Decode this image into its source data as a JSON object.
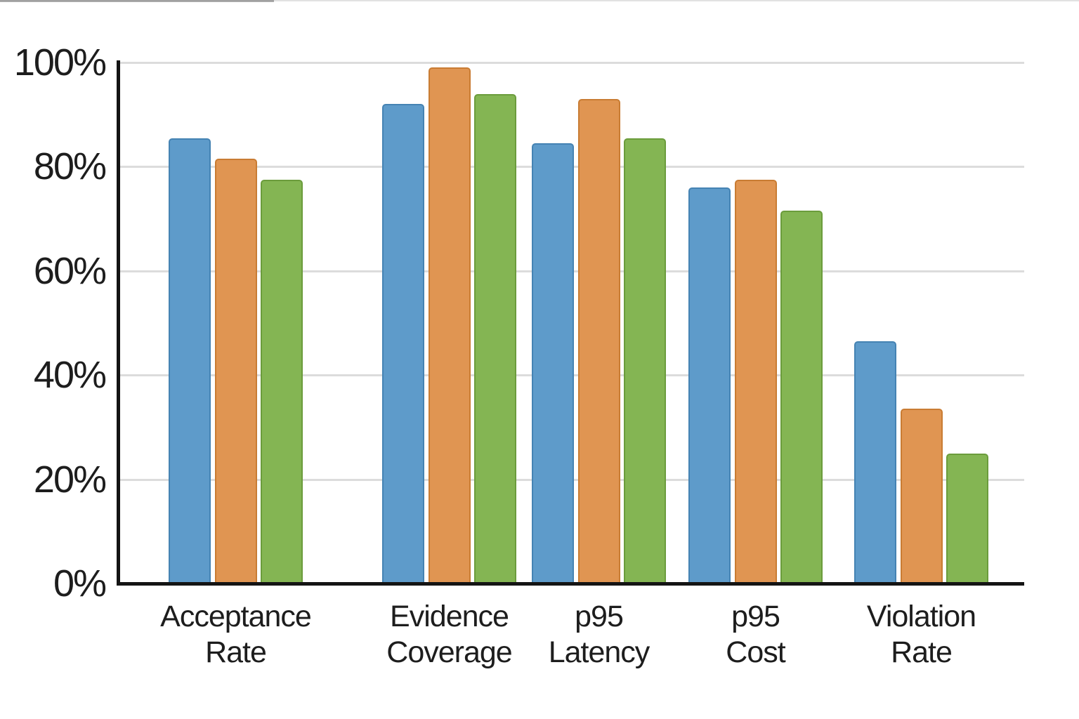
{
  "chart_data": {
    "type": "bar",
    "title": "",
    "xlabel": "",
    "ylabel": "",
    "legend": "none",
    "grid": "horizontal",
    "ylim": [
      0,
      100
    ],
    "categories": [
      "Acceptance Rate",
      "Evidence Coverage",
      "p95 Latency",
      "p95 Cost",
      "Violation Rate"
    ],
    "category_lines": [
      [
        "Acceptance",
        "Rate"
      ],
      [
        "Evidence",
        "Coverage"
      ],
      [
        "p95",
        "Latency"
      ],
      [
        "p95",
        "Cost"
      ],
      [
        "Violation",
        "Rate"
      ]
    ],
    "series": [
      {
        "name": "series-blue",
        "color": "#5E9BCA",
        "border_color": "#4583B3",
        "values": [
          85.5,
          92.0,
          84.5,
          76.0,
          46.5
        ]
      },
      {
        "name": "series-orange",
        "color": "#E09552",
        "border_color": "#C97C33",
        "values": [
          81.5,
          99.0,
          93.0,
          77.5,
          33.5
        ]
      },
      {
        "name": "series-green",
        "color": "#84B553",
        "border_color": "#6B9C3C",
        "values": [
          77.5,
          94.0,
          85.5,
          71.5,
          25.0
        ]
      }
    ],
    "yticks": [
      {
        "value": 0,
        "label": "0%"
      },
      {
        "value": 20,
        "label": "20%"
      },
      {
        "value": 40,
        "label": "40%"
      },
      {
        "value": 60,
        "label": "60%"
      },
      {
        "value": 80,
        "label": "80%"
      },
      {
        "value": 100,
        "label": "100%"
      }
    ],
    "colors": {
      "grid": "#DCDCDC",
      "axis": "#141414",
      "text": "#1D1D1D",
      "background": "#FFFFFF"
    }
  }
}
